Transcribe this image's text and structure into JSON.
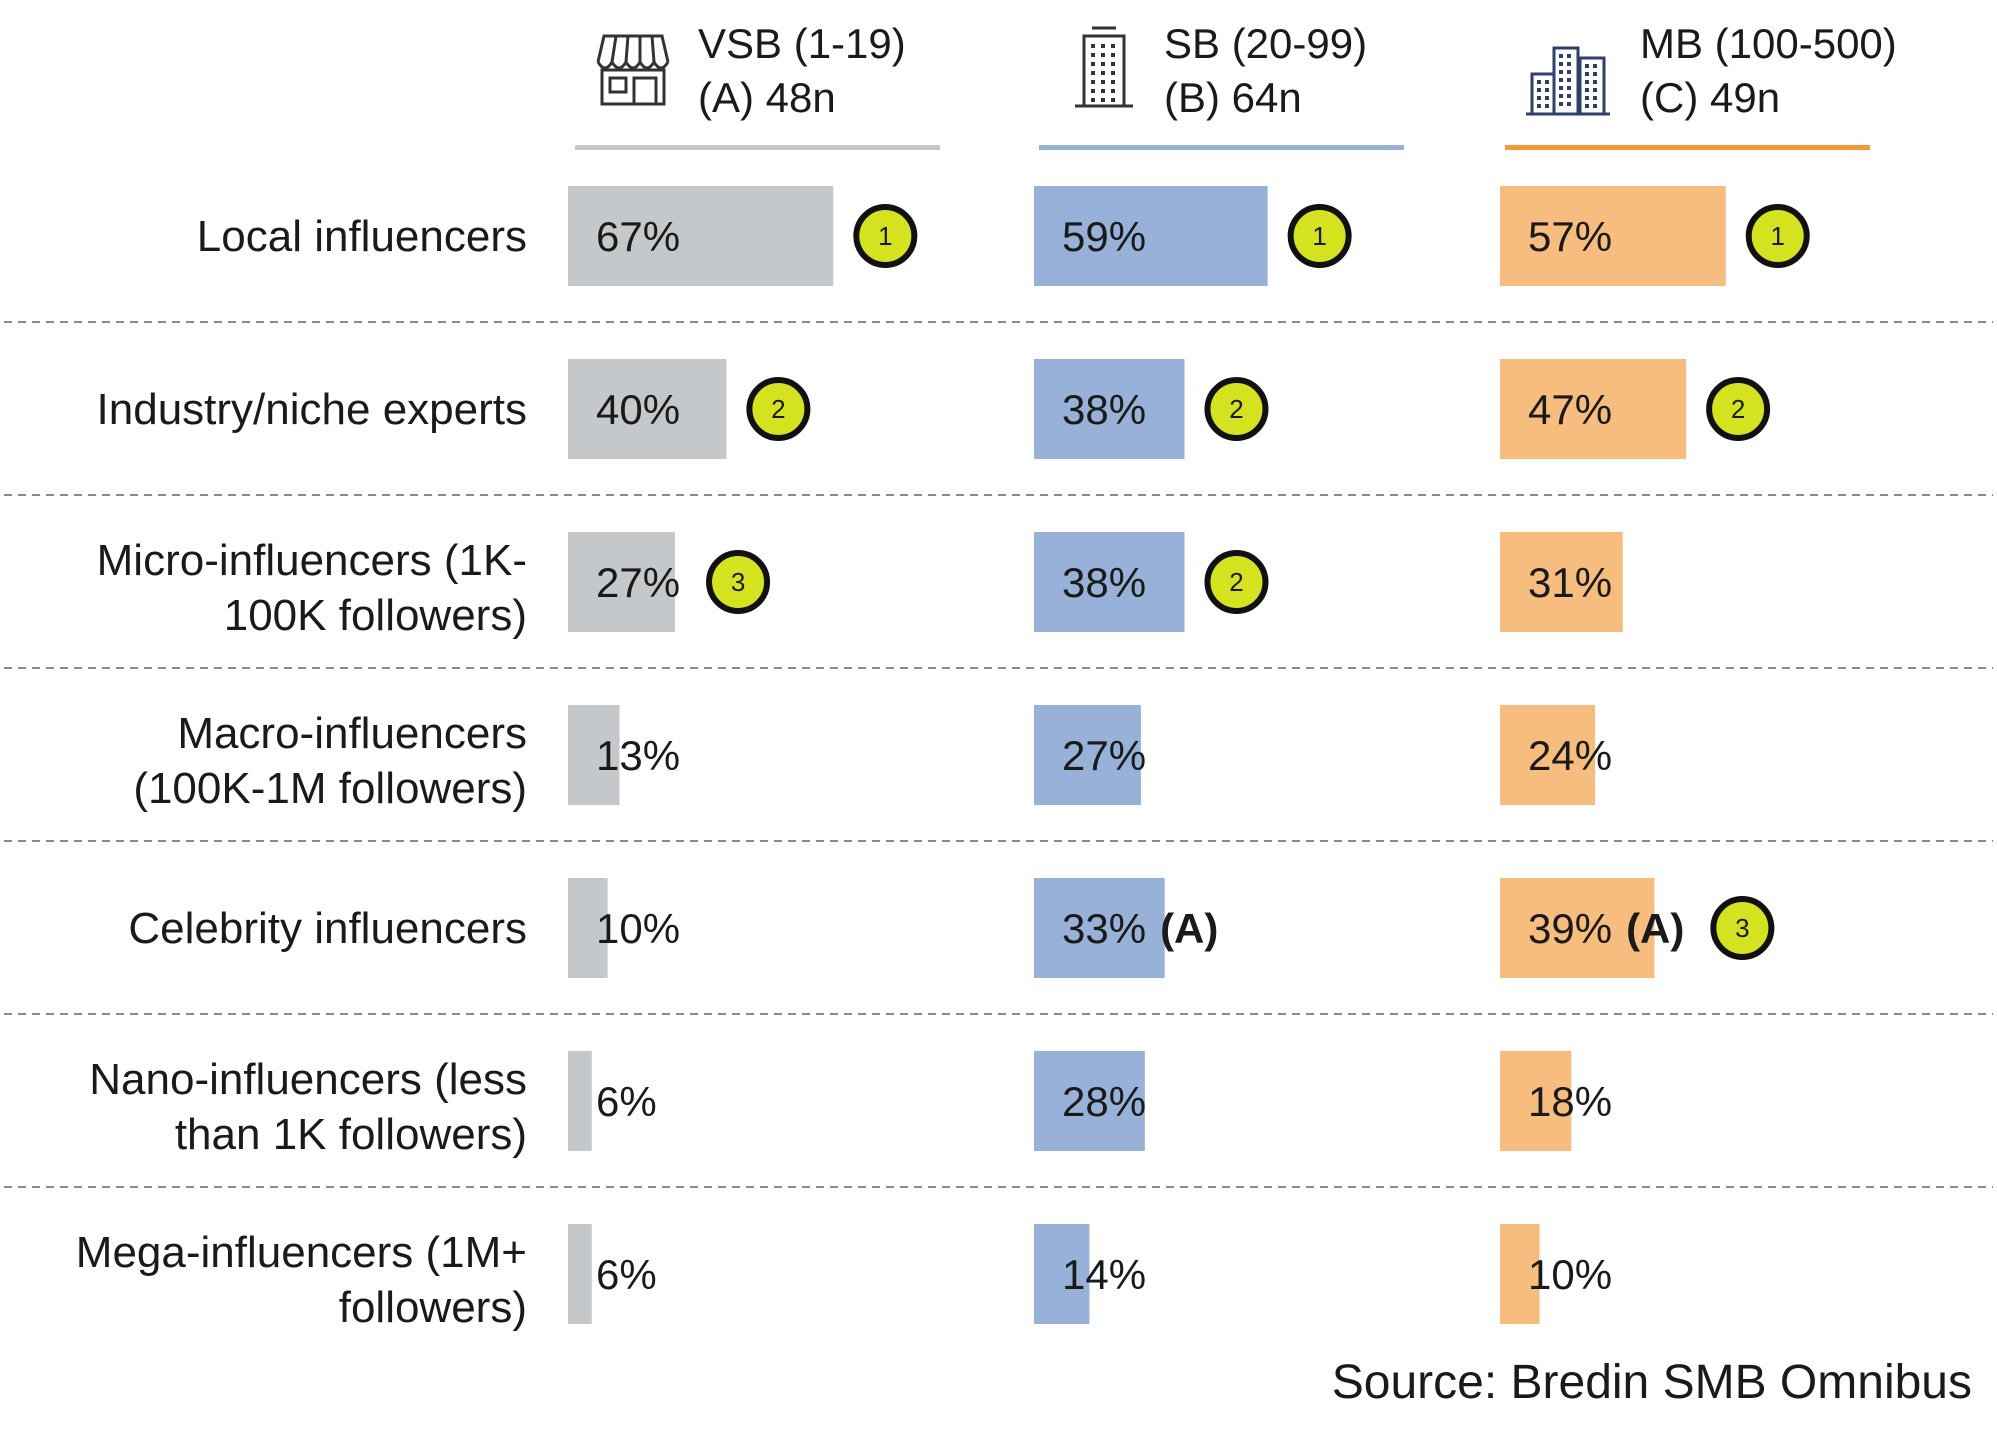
{
  "source": "Source: Bredin SMB Omnibus",
  "colors": {
    "VSB": "#c5c8ca",
    "SB": "#98b1d9",
    "MB": "#f6bd7f",
    "VSB_rule": "#c5c8ca",
    "SB_rule": "#98b1d9",
    "MB_rule": "#f29a3a",
    "rank_badge": "#d4e21f"
  },
  "chart_data": {
    "type": "bar",
    "orientation": "horizontal",
    "categories": [
      "Local influencers",
      "Industry/niche experts",
      "Micro-influencers (1K-100K followers)",
      "Macro-influencers (100K-1M followers)",
      "Celebrity influencers",
      "Nano-influencers (less than 1K followers)",
      "Mega-influencers (1M+ followers)"
    ],
    "category_lines": [
      [
        "Local influencers"
      ],
      [
        "Industry/niche experts"
      ],
      [
        "Micro-influencers (1K-",
        "100K followers)"
      ],
      [
        "Macro-influencers",
        "(100K-1M followers)"
      ],
      [
        "Celebrity influencers"
      ],
      [
        "Nano-influencers (less",
        "than 1K followers)"
      ],
      [
        "Mega-influencers (1M+",
        "followers)"
      ]
    ],
    "series": [
      {
        "name": "VSB (1-19)",
        "group": "(A) 48n",
        "icon": "storefront-icon",
        "values": [
          67,
          40,
          27,
          13,
          10,
          6,
          6
        ],
        "labels": [
          "67%",
          "40%",
          "27%",
          "13%",
          "10%",
          "6%",
          "6%"
        ],
        "sig": [
          "",
          "",
          "",
          "",
          "",
          "",
          ""
        ],
        "ranks": [
          "1",
          "2",
          "3",
          "",
          "",
          "",
          ""
        ]
      },
      {
        "name": "SB (20-99)",
        "group": "(B) 64n",
        "icon": "office-building-icon",
        "values": [
          59,
          38,
          38,
          27,
          33,
          28,
          14
        ],
        "labels": [
          "59%",
          "38%",
          "38%",
          "27%",
          "33%",
          "28%",
          "14%"
        ],
        "sig": [
          "",
          "",
          "",
          "",
          "(A)",
          "",
          ""
        ],
        "ranks": [
          "1",
          "2",
          "2",
          "",
          "",
          "",
          ""
        ]
      },
      {
        "name": "MB (100-500)",
        "group": "(C) 49n",
        "icon": "city-buildings-icon",
        "values": [
          57,
          47,
          31,
          24,
          39,
          18,
          10
        ],
        "labels": [
          "57%",
          "47%",
          "31%",
          "24%",
          "39%",
          "18%",
          "10%"
        ],
        "sig": [
          "",
          "",
          "",
          "",
          "(A)",
          "",
          ""
        ],
        "ranks": [
          "1",
          "2",
          "",
          "",
          "3",
          "",
          ""
        ]
      }
    ],
    "xlim": [
      0,
      100
    ],
    "units": "%",
    "grid": false,
    "legend": "top"
  }
}
